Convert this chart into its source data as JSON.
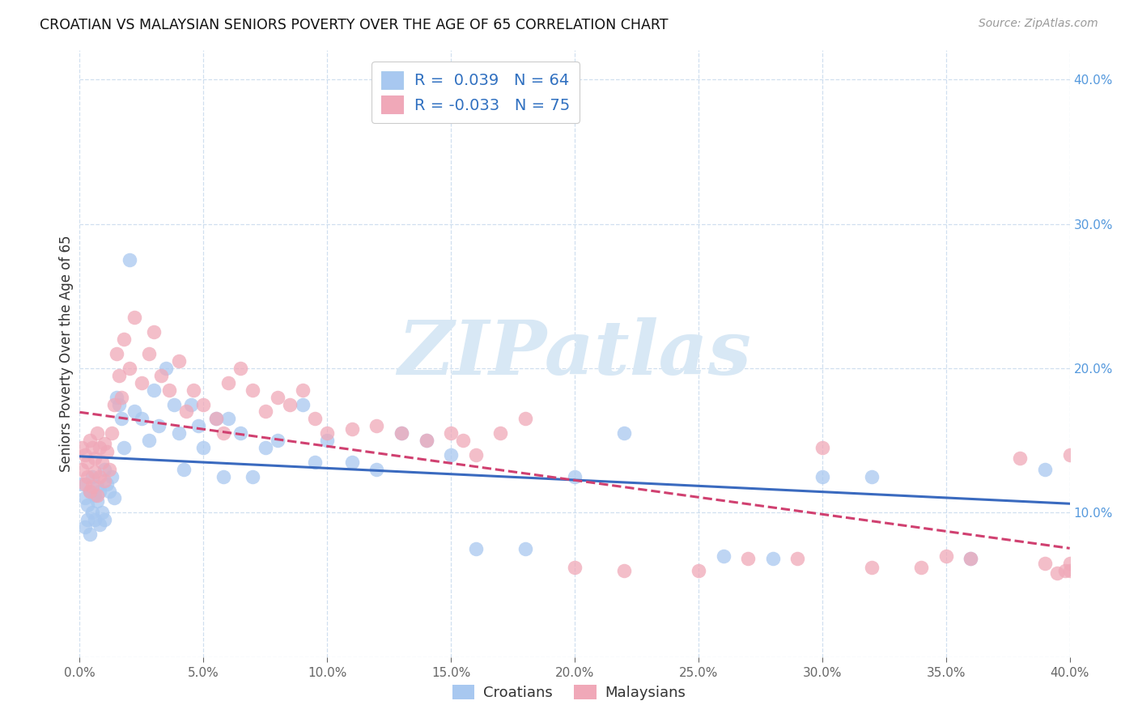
{
  "title": "CROATIAN VS MALAYSIAN SENIORS POVERTY OVER THE AGE OF 65 CORRELATION CHART",
  "source": "Source: ZipAtlas.com",
  "ylabel": "Seniors Poverty Over the Age of 65",
  "xlim": [
    0.0,
    0.4
  ],
  "ylim": [
    0.0,
    0.42
  ],
  "x_ticks": [
    0.0,
    0.05,
    0.1,
    0.15,
    0.2,
    0.25,
    0.3,
    0.35,
    0.4
  ],
  "y_ticks": [
    0.0,
    0.1,
    0.2,
    0.3,
    0.4
  ],
  "croatian_color": "#a8c8f0",
  "malaysian_color": "#f0a8b8",
  "croatian_line_color": "#3a6abf",
  "malaysian_line_color": "#d04070",
  "R_croatian": 0.039,
  "N_croatian": 64,
  "R_malaysian": -0.033,
  "N_malaysian": 75,
  "watermark": "ZIPatlas",
  "watermark_color": "#d8e8f5",
  "legend_text_color": "#3070c0",
  "cro_x": [
    0.001,
    0.002,
    0.002,
    0.003,
    0.003,
    0.004,
    0.004,
    0.005,
    0.005,
    0.006,
    0.006,
    0.007,
    0.007,
    0.008,
    0.008,
    0.009,
    0.01,
    0.01,
    0.011,
    0.012,
    0.013,
    0.014,
    0.015,
    0.016,
    0.017,
    0.018,
    0.02,
    0.022,
    0.025,
    0.028,
    0.03,
    0.032,
    0.035,
    0.038,
    0.04,
    0.042,
    0.045,
    0.048,
    0.05,
    0.055,
    0.058,
    0.06,
    0.065,
    0.07,
    0.075,
    0.08,
    0.09,
    0.095,
    0.1,
    0.11,
    0.12,
    0.13,
    0.14,
    0.15,
    0.16,
    0.18,
    0.2,
    0.22,
    0.26,
    0.28,
    0.3,
    0.32,
    0.36,
    0.39
  ],
  "cro_y": [
    0.12,
    0.11,
    0.09,
    0.105,
    0.095,
    0.115,
    0.085,
    0.1,
    0.125,
    0.112,
    0.095,
    0.108,
    0.118,
    0.092,
    0.115,
    0.1,
    0.13,
    0.095,
    0.12,
    0.115,
    0.125,
    0.11,
    0.18,
    0.175,
    0.165,
    0.145,
    0.275,
    0.17,
    0.165,
    0.15,
    0.185,
    0.16,
    0.2,
    0.175,
    0.155,
    0.13,
    0.175,
    0.16,
    0.145,
    0.165,
    0.125,
    0.165,
    0.155,
    0.125,
    0.145,
    0.15,
    0.175,
    0.135,
    0.15,
    0.135,
    0.13,
    0.155,
    0.15,
    0.14,
    0.075,
    0.075,
    0.125,
    0.155,
    0.07,
    0.068,
    0.125,
    0.125,
    0.068,
    0.13
  ],
  "mal_x": [
    0.001,
    0.001,
    0.002,
    0.002,
    0.003,
    0.003,
    0.004,
    0.004,
    0.005,
    0.005,
    0.006,
    0.006,
    0.007,
    0.007,
    0.008,
    0.008,
    0.009,
    0.01,
    0.01,
    0.011,
    0.012,
    0.013,
    0.014,
    0.015,
    0.016,
    0.017,
    0.018,
    0.02,
    0.022,
    0.025,
    0.028,
    0.03,
    0.033,
    0.036,
    0.04,
    0.043,
    0.046,
    0.05,
    0.055,
    0.058,
    0.06,
    0.065,
    0.07,
    0.075,
    0.08,
    0.085,
    0.09,
    0.095,
    0.1,
    0.11,
    0.12,
    0.13,
    0.14,
    0.15,
    0.155,
    0.16,
    0.17,
    0.18,
    0.2,
    0.22,
    0.25,
    0.27,
    0.29,
    0.3,
    0.32,
    0.34,
    0.35,
    0.36,
    0.38,
    0.39,
    0.395,
    0.398,
    0.4,
    0.4,
    0.4
  ],
  "mal_y": [
    0.13,
    0.145,
    0.12,
    0.14,
    0.135,
    0.125,
    0.15,
    0.115,
    0.145,
    0.118,
    0.138,
    0.128,
    0.155,
    0.112,
    0.145,
    0.125,
    0.135,
    0.148,
    0.122,
    0.142,
    0.13,
    0.155,
    0.175,
    0.21,
    0.195,
    0.18,
    0.22,
    0.2,
    0.235,
    0.19,
    0.21,
    0.225,
    0.195,
    0.185,
    0.205,
    0.17,
    0.185,
    0.175,
    0.165,
    0.155,
    0.19,
    0.2,
    0.185,
    0.17,
    0.18,
    0.175,
    0.185,
    0.165,
    0.155,
    0.158,
    0.16,
    0.155,
    0.15,
    0.155,
    0.15,
    0.14,
    0.155,
    0.165,
    0.062,
    0.06,
    0.06,
    0.068,
    0.068,
    0.145,
    0.062,
    0.062,
    0.07,
    0.068,
    0.138,
    0.065,
    0.058,
    0.06,
    0.14,
    0.06,
    0.065
  ]
}
